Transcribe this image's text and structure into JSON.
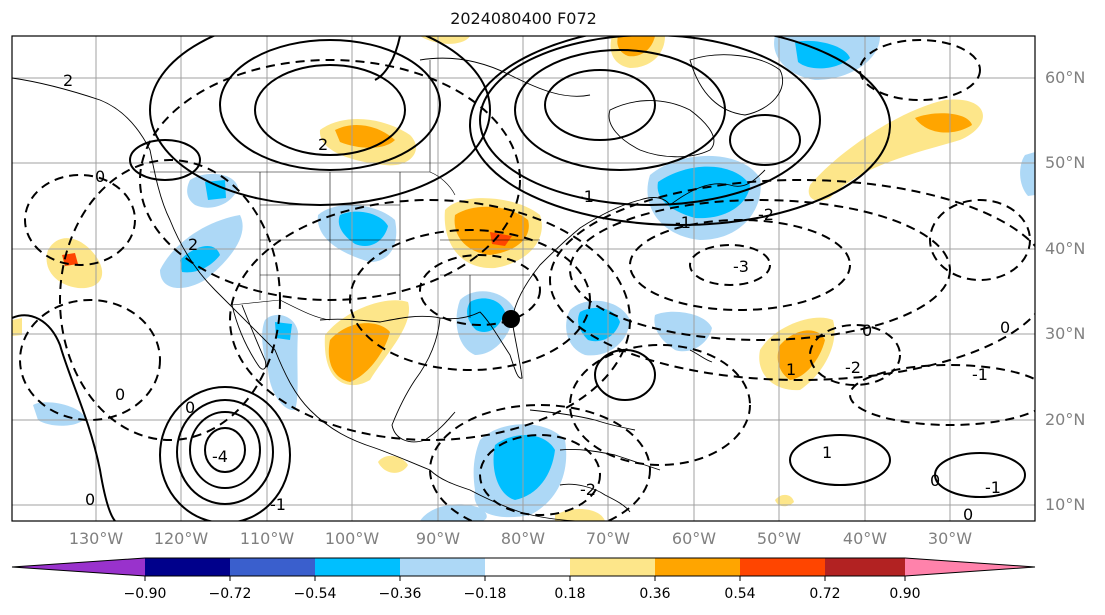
{
  "title": "2024080400 F072",
  "lat_labels": [
    "60°N",
    "50°N",
    "40°N",
    "30°N",
    "20°N",
    "10°N"
  ],
  "lon_labels": [
    "130°W",
    "120°W",
    "110°W",
    "100°W",
    "90°W",
    "80°W",
    "70°W",
    "60°W",
    "50°W",
    "40°W",
    "30°W"
  ],
  "colorbar": {
    "ticks": [
      "−0.90",
      "−0.72",
      "−0.54",
      "−0.36",
      "−0.18",
      "0.18",
      "0.36",
      "0.54",
      "0.72",
      "0.90"
    ],
    "colors": [
      "#9932cc",
      "#00008b",
      "#3a5fcd",
      "#00bfff",
      "#add8f6",
      "#ffffff",
      "#fde68a",
      "#ffa500",
      "#ff4500",
      "#b22222",
      "#ff82ab"
    ]
  },
  "contour_labels": [
    "2",
    "2",
    "2",
    "0",
    "0",
    "-1",
    "-2",
    "-3",
    "-1",
    "1",
    "0",
    "-1",
    "-2",
    "0",
    "-1",
    "0",
    "-2",
    "-4",
    "1",
    "0",
    "-1",
    "0",
    "0"
  ],
  "marker": "storm-position"
}
